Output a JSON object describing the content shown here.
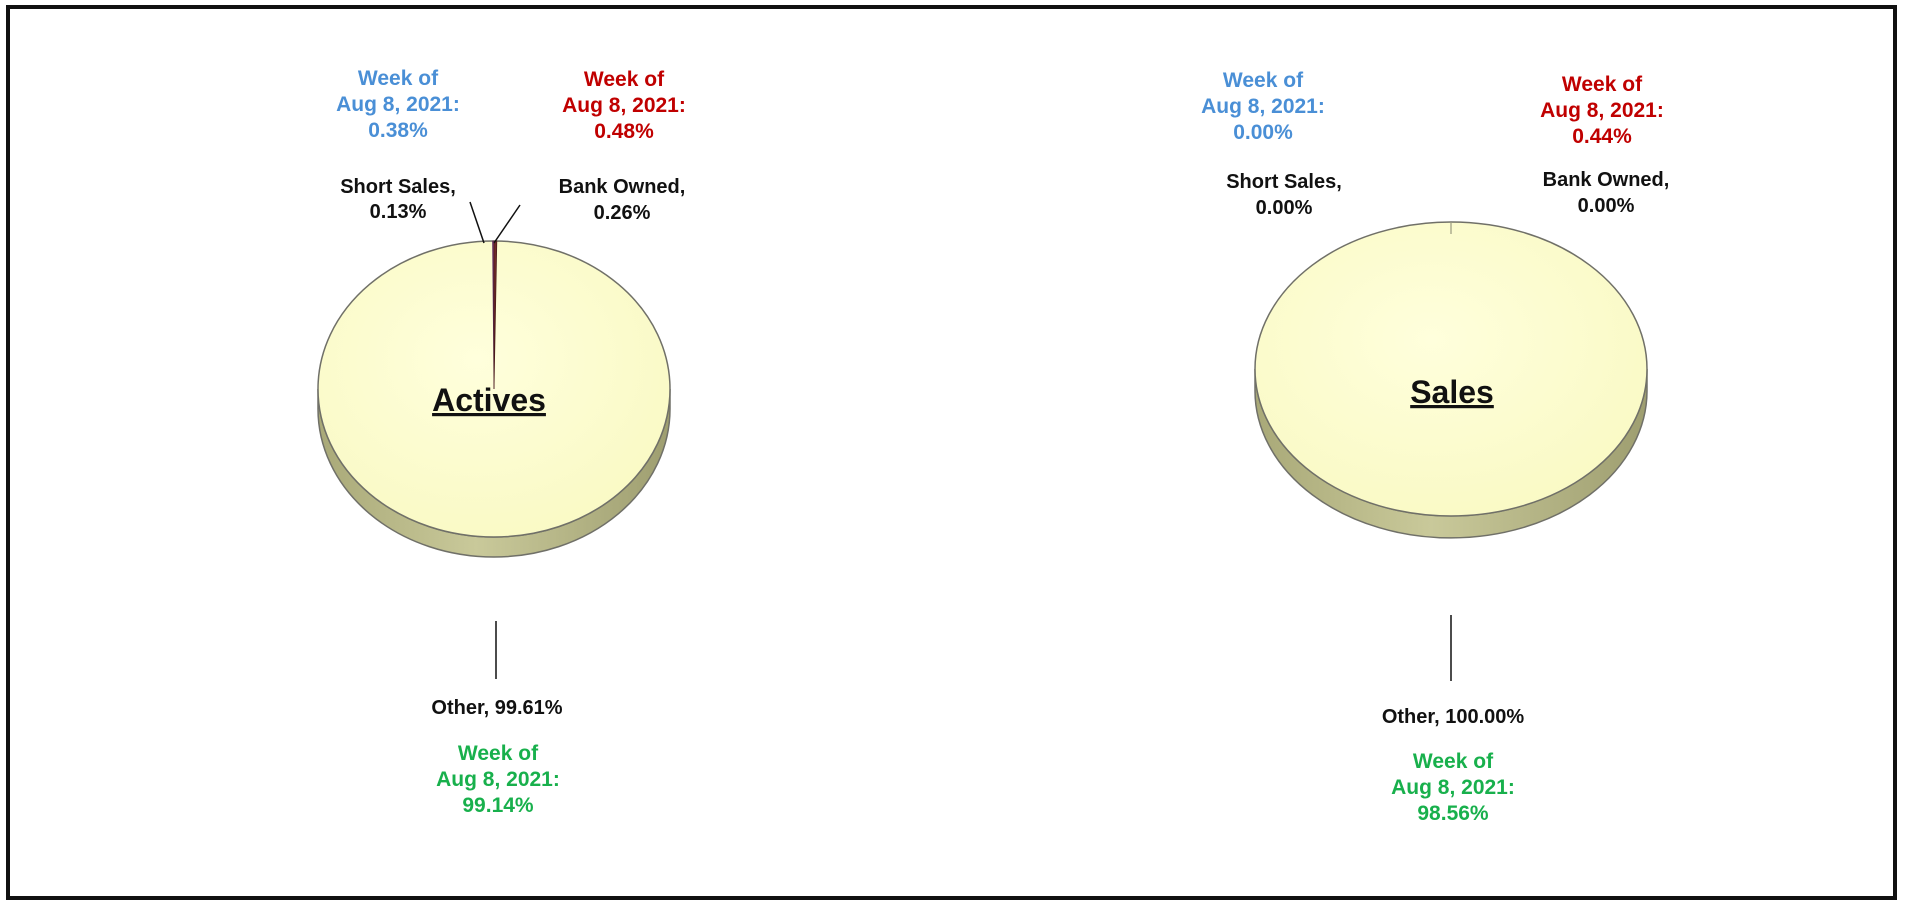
{
  "colors": {
    "week_blue": "#4a8fd6",
    "week_red": "#c00000",
    "week_green": "#18b04c",
    "pie_fill_top": "#fefecf",
    "pie_fill_side": "#b7b788",
    "pie_edge": "#707068",
    "short_sales_slice": "#8a3a7a",
    "bank_owned_slice": "#6f2a2a",
    "leader": "#111111"
  },
  "chart_data": [
    {
      "type": "pie",
      "title": "Actives",
      "categories": [
        "Short Sales",
        "Bank Owned",
        "Other"
      ],
      "values": [
        0.13,
        0.26,
        99.61
      ],
      "labels": {
        "short_sales": [
          "Short Sales,",
          "0.13%"
        ],
        "bank_owned": [
          "Bank Owned,",
          "0.26%"
        ],
        "other": "Other, 99.61%"
      },
      "annotations": {
        "short_sales_week": [
          "Week of",
          "Aug 8, 2021:",
          "0.38%"
        ],
        "bank_owned_week": [
          "Week of",
          "Aug 8, 2021:",
          "0.48%"
        ],
        "other_week": [
          "Week of",
          "Aug 8, 2021:",
          "99.14%"
        ]
      },
      "prior_week_values": {
        "Short Sales": 0.38,
        "Bank Owned": 0.48,
        "Other": 99.14
      }
    },
    {
      "type": "pie",
      "title": "Sales",
      "categories": [
        "Short Sales",
        "Bank Owned",
        "Other"
      ],
      "values": [
        0.0,
        0.0,
        100.0
      ],
      "labels": {
        "short_sales": [
          "Short Sales,",
          "0.00%"
        ],
        "bank_owned": [
          "Bank Owned,",
          "0.00%"
        ],
        "other": "Other, 100.00%"
      },
      "annotations": {
        "short_sales_week": [
          "Week of",
          "Aug 8, 2021:",
          "0.00%"
        ],
        "bank_owned_week": [
          "Week of",
          "Aug 8, 2021:",
          "0.44%"
        ],
        "other_week": [
          "Week of",
          "Aug 8, 2021:",
          "98.56%"
        ]
      },
      "prior_week_values": {
        "Short Sales": 0.0,
        "Bank Owned": 0.44,
        "Other": 98.56
      }
    }
  ]
}
